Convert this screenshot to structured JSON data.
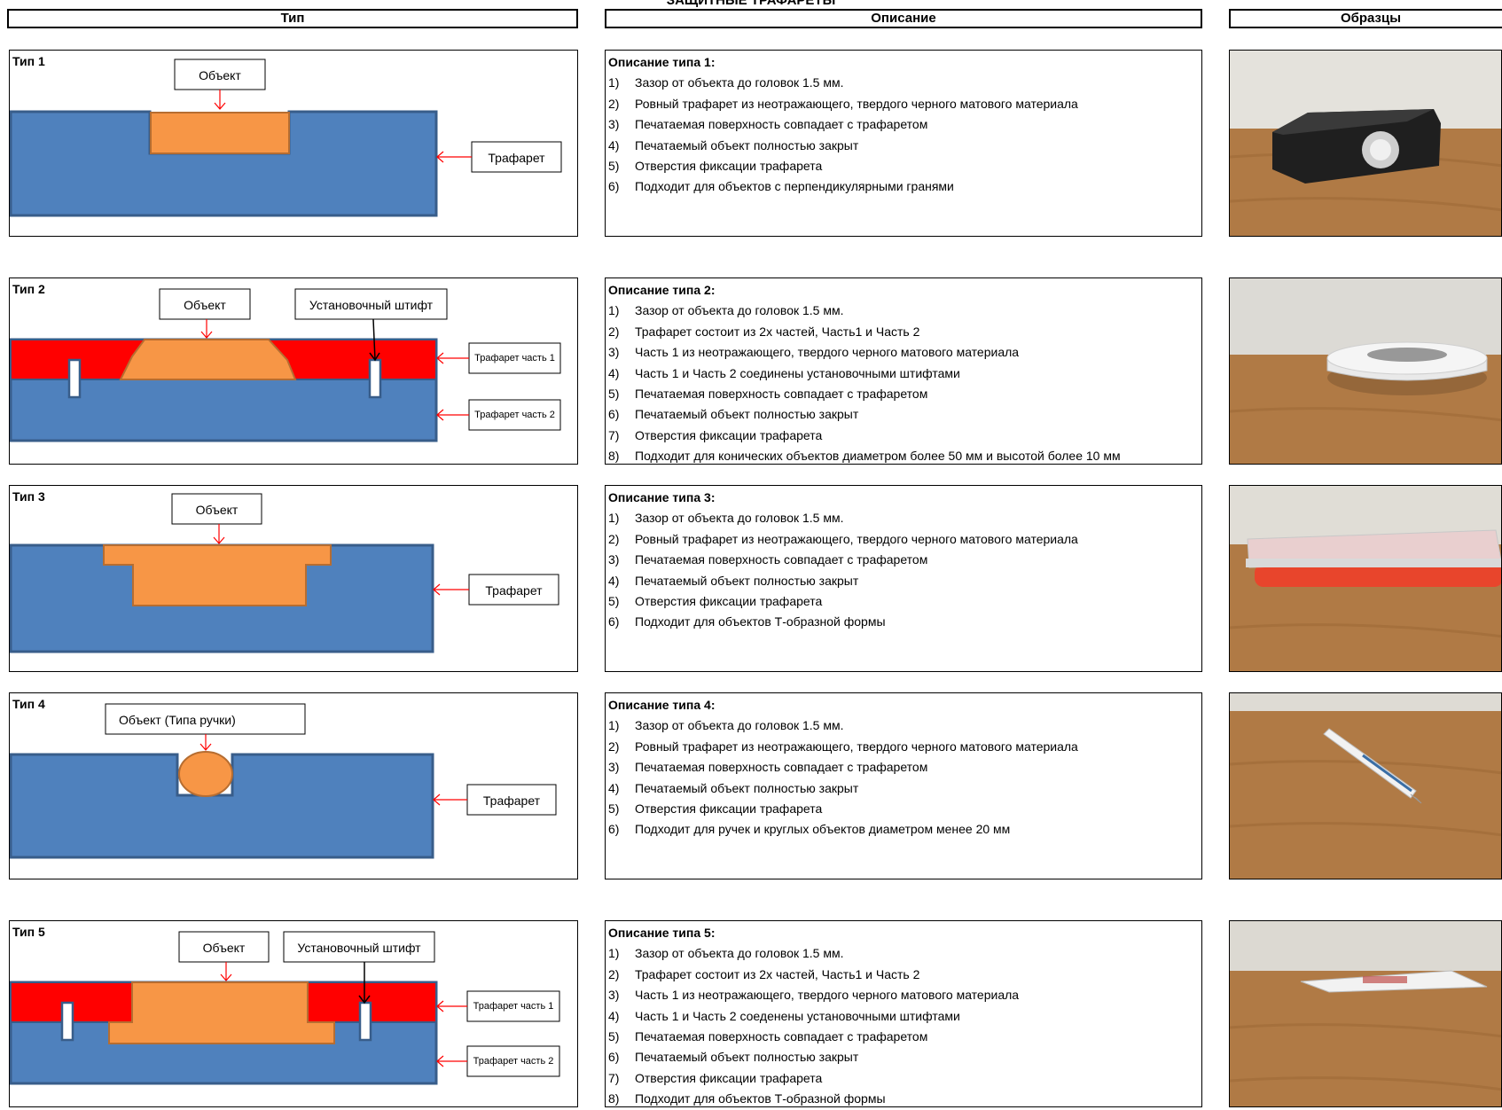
{
  "title": "ЗАЩИТНЫЕ ТРАФАРЕТЫ",
  "headers": {
    "type": "Тип",
    "description": "Описание",
    "samples": "Образцы"
  },
  "labels": {
    "object": "Объект",
    "object_pen": "Объект (Типа ручки)",
    "pin": "Установочный штифт",
    "stencil": "Трафарет",
    "stencil_p1": "Трафарет часть 1",
    "stencil_p2": "Трафарет часть 2"
  },
  "types": [
    {
      "name": "Тип 1",
      "desc_title": "Описание типа 1:",
      "items": [
        {
          "n": "1)",
          "t": "Зазор от объекта до головок 1.5 мм."
        },
        {
          "n": "2)",
          "t": "Ровный трафарет из неотражающего, твердого черного матового материала"
        },
        {
          "n": "3)",
          "t": "Печатаемая поверхность совпадает с трафаретом"
        },
        {
          "n": "4)",
          "t": "Печатаемый объект полностью закрыт"
        },
        {
          "n": "5)",
          "t": "Отверстия фиксации трафарета"
        },
        {
          "n": "6)",
          "t": "Подходит для объектов с перпендикулярными гранями"
        }
      ]
    },
    {
      "name": "Тип 2",
      "desc_title": "Описание типа 2:",
      "items": [
        {
          "n": "1)",
          "t": "Зазор от объекта до головок 1.5 мм."
        },
        {
          "n": "2)",
          "t": "Трафарет состоит из 2х частей, Часть1 и Часть 2"
        },
        {
          "n": "3)",
          "t": "Часть 1 из неотражающего, твердого черного матового материала"
        },
        {
          "n": "4)",
          "t": "Часть 1 и Часть 2 соединены установочными штифтами"
        },
        {
          "n": "5)",
          "t": "Печатаемая поверхность совпадает с трафаретом"
        },
        {
          "n": "6)",
          "t": "Печатаемый объект полностью закрыт"
        },
        {
          "n": "7)",
          "t": "Отверстия фиксации трафарета"
        },
        {
          "n": "8)",
          "t": "Подходит для конических объектов диаметром более 50 мм и высотой более 10 мм"
        }
      ]
    },
    {
      "name": "Тип 3",
      "desc_title": "Описание типа 3:",
      "items": [
        {
          "n": "1)",
          "t": "Зазор от объекта до головок 1.5 мм."
        },
        {
          "n": "2)",
          "t": "Ровный трафарет из неотражающего, твердого черного матового материала"
        },
        {
          "n": "3)",
          "t": "Печатаемая поверхность совпадает с трафаретом"
        },
        {
          "n": "4)",
          "t": "Печатаемый объект полностью закрыт"
        },
        {
          "n": "5)",
          "t": "Отверстия фиксации трафарета"
        },
        {
          "n": "6)",
          "t": "Подходит для объектов Т-образной формы"
        }
      ]
    },
    {
      "name": "Тип 4",
      "desc_title": "Описание типа 4:",
      "items": [
        {
          "n": "1)",
          "t": "Зазор от объекта до головок 1.5 мм."
        },
        {
          "n": "2)",
          "t": "Ровный трафарет из неотражающего, твердого черного матового материала"
        },
        {
          "n": "3)",
          "t": "Печатаемая поверхность совпадает с трафаретом"
        },
        {
          "n": "4)",
          "t": "Печатаемый объект полностью закрыт"
        },
        {
          "n": "5)",
          "t": "Отверстия фиксации трафарета"
        },
        {
          "n": "6)",
          "t": "Подходит для ручек и круглых объектов диаметром менее 20 мм"
        }
      ]
    },
    {
      "name": "Тип 5",
      "desc_title": "Описание типа 5:",
      "items": [
        {
          "n": "1)",
          "t": "Зазор от объекта до головок 1.5 мм."
        },
        {
          "n": "2)",
          "t": "Трафарет состоит из 2х частей, Часть1 и Часть 2"
        },
        {
          "n": "3)",
          "t": "Часть 1 из неотражающего, твердого черного матового материала"
        },
        {
          "n": "4)",
          "t": "Часть 1 и Часть 2 соеденены установочными штифтами"
        },
        {
          "n": "5)",
          "t": "Печатаемая поверхность совпадает с трафаретом"
        },
        {
          "n": "6)",
          "t": "Печатаемый объект полностью закрыт"
        },
        {
          "n": "7)",
          "t": "Отверстия фиксации трафарета"
        },
        {
          "n": "8)",
          "t": "Подходит для объектов Т-образной формы"
        }
      ]
    }
  ],
  "colors": {
    "stencil_blue": "#4f81bd",
    "stencil_border": "#385d8a",
    "object_orange": "#f79646",
    "object_border": "#b66d31",
    "part1_red": "#ff0000",
    "arrow_red": "#ff0000",
    "wood": "#b07a45"
  }
}
